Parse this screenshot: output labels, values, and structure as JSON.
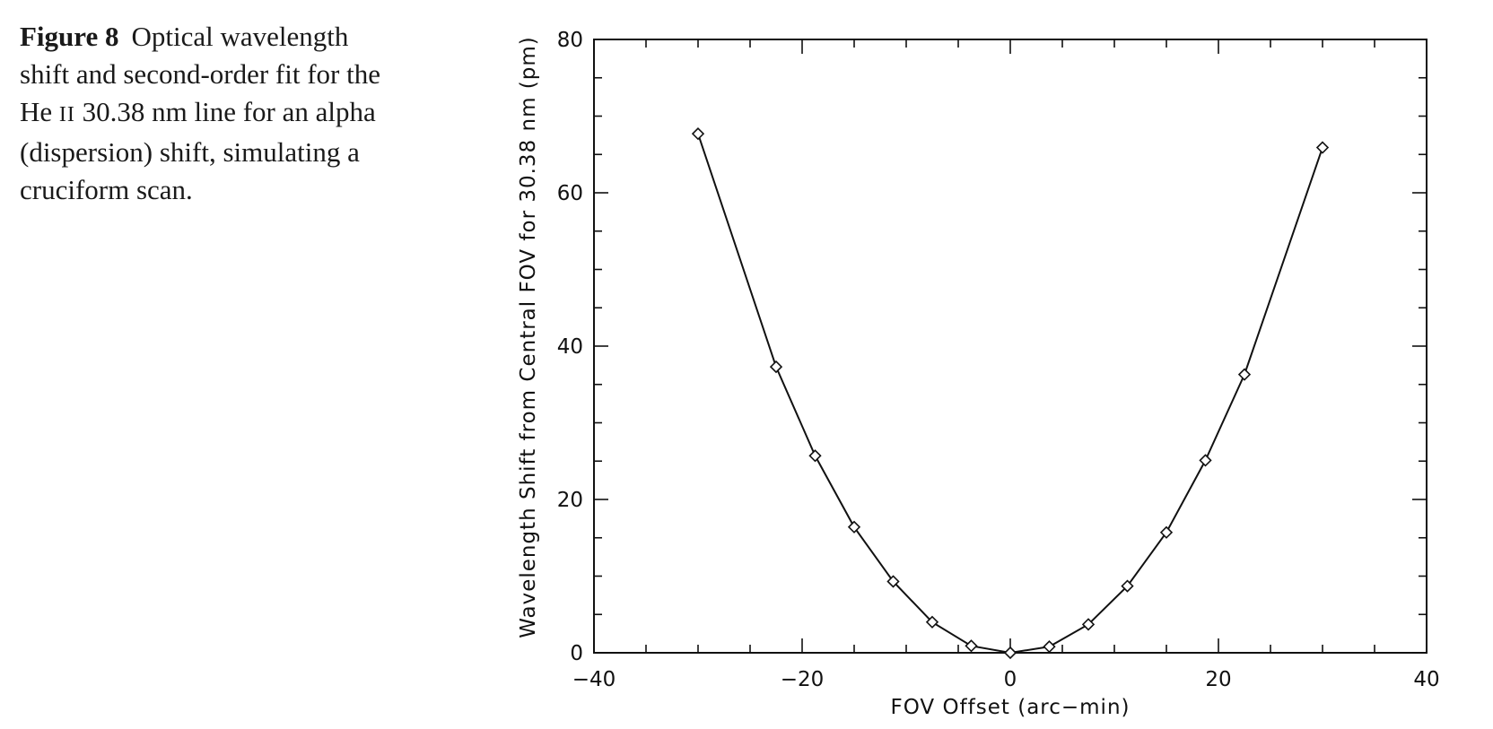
{
  "caption": {
    "label": "Figure 8",
    "line1": "Optical wavelength",
    "line2": "shift and second-order fit for the",
    "line3_pre": "He ",
    "line3_ion": "II",
    "line3_post": " 30.38 nm line for an alpha",
    "line4": "(dispersion) shift, simulating a",
    "line5": "cruciform scan."
  },
  "chart_data": {
    "type": "line",
    "title": "",
    "xlabel": "FOV Offset (arc−min)",
    "ylabel": "Wavelength Shift from Central FOV for 30.38 nm (pm)",
    "xlim": [
      -40,
      40
    ],
    "ylim": [
      0,
      80
    ],
    "x_major_ticks": [
      -40,
      -20,
      0,
      20,
      40
    ],
    "x_tick_labels": [
      "−40",
      "−20",
      "0",
      "20",
      "40"
    ],
    "y_major_ticks": [
      0,
      20,
      40,
      60,
      80
    ],
    "y_tick_labels": [
      "0",
      "20",
      "40",
      "60",
      "80"
    ],
    "x_minor_step": 5,
    "y_minor_step": 5,
    "grid": false,
    "marker": "diamond",
    "line_color": "#111111",
    "series": [
      {
        "x": [
          -30,
          -22.5,
          -18.75,
          -15,
          -11.25,
          -7.5,
          -3.75,
          0,
          3.75,
          7.5,
          11.25,
          15,
          18.75,
          22.5,
          30
        ],
        "y": [
          67.7,
          37.3,
          25.7,
          16.4,
          9.3,
          4.0,
          0.9,
          0,
          0.8,
          3.7,
          8.7,
          15.7,
          25.1,
          36.3,
          65.9
        ]
      }
    ]
  }
}
